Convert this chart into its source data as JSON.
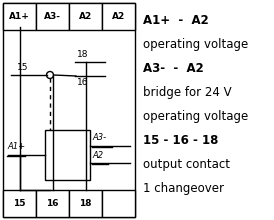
{
  "bg_color": "#ffffff",
  "top_terminals": [
    "A1+",
    "A3-",
    "A2",
    "A2"
  ],
  "bottom_terminals": [
    "15",
    "16",
    "18",
    ""
  ],
  "text_lines": [
    {
      "text": "A1+  -  A2",
      "bold": true,
      "size": 8.5
    },
    {
      "text": "operating voltage",
      "bold": false,
      "size": 8.5
    },
    {
      "text": "A3-  -  A2",
      "bold": true,
      "size": 8.5
    },
    {
      "text": "bridge for 24 V",
      "bold": false,
      "size": 8.5
    },
    {
      "text": "operating voltage",
      "bold": false,
      "size": 8.5
    },
    {
      "text": "15 - 16 - 18",
      "bold": true,
      "size": 8.5
    },
    {
      "text": "output contact",
      "bold": false,
      "size": 8.5
    },
    {
      "text": "1 changeover",
      "bold": false,
      "size": 8.5
    }
  ],
  "lw": 1.0
}
